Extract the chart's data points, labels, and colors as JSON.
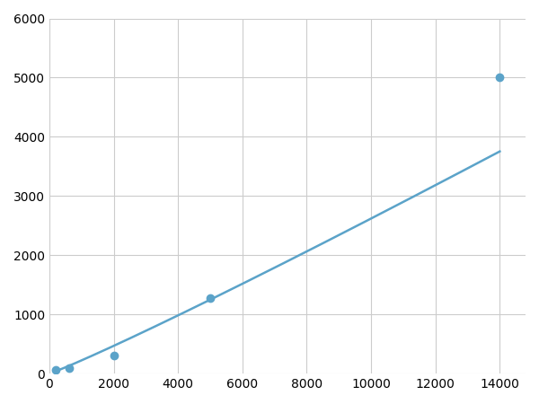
{
  "x": [
    200,
    625,
    2000,
    5000,
    14000
  ],
  "y": [
    60,
    100,
    310,
    1280,
    5000
  ],
  "line_color": "#5ba3c9",
  "marker_color": "#5ba3c9",
  "marker_size": 6,
  "line_width": 1.8,
  "xlim": [
    0,
    14800
  ],
  "ylim": [
    0,
    6000
  ],
  "xticks": [
    0,
    2000,
    4000,
    6000,
    8000,
    10000,
    12000,
    14000
  ],
  "xticklabels": [
    "0",
    "2000",
    "4000",
    "6000",
    "8000",
    "10000",
    "12000",
    "14000"
  ],
  "yticks": [
    0,
    1000,
    2000,
    3000,
    4000,
    5000,
    6000
  ],
  "yticklabels": [
    "0",
    "1000",
    "2000",
    "3000",
    "4000",
    "5000",
    "6000"
  ],
  "grid_color": "#cccccc",
  "bg_color": "#ffffff",
  "tick_fontsize": 10
}
